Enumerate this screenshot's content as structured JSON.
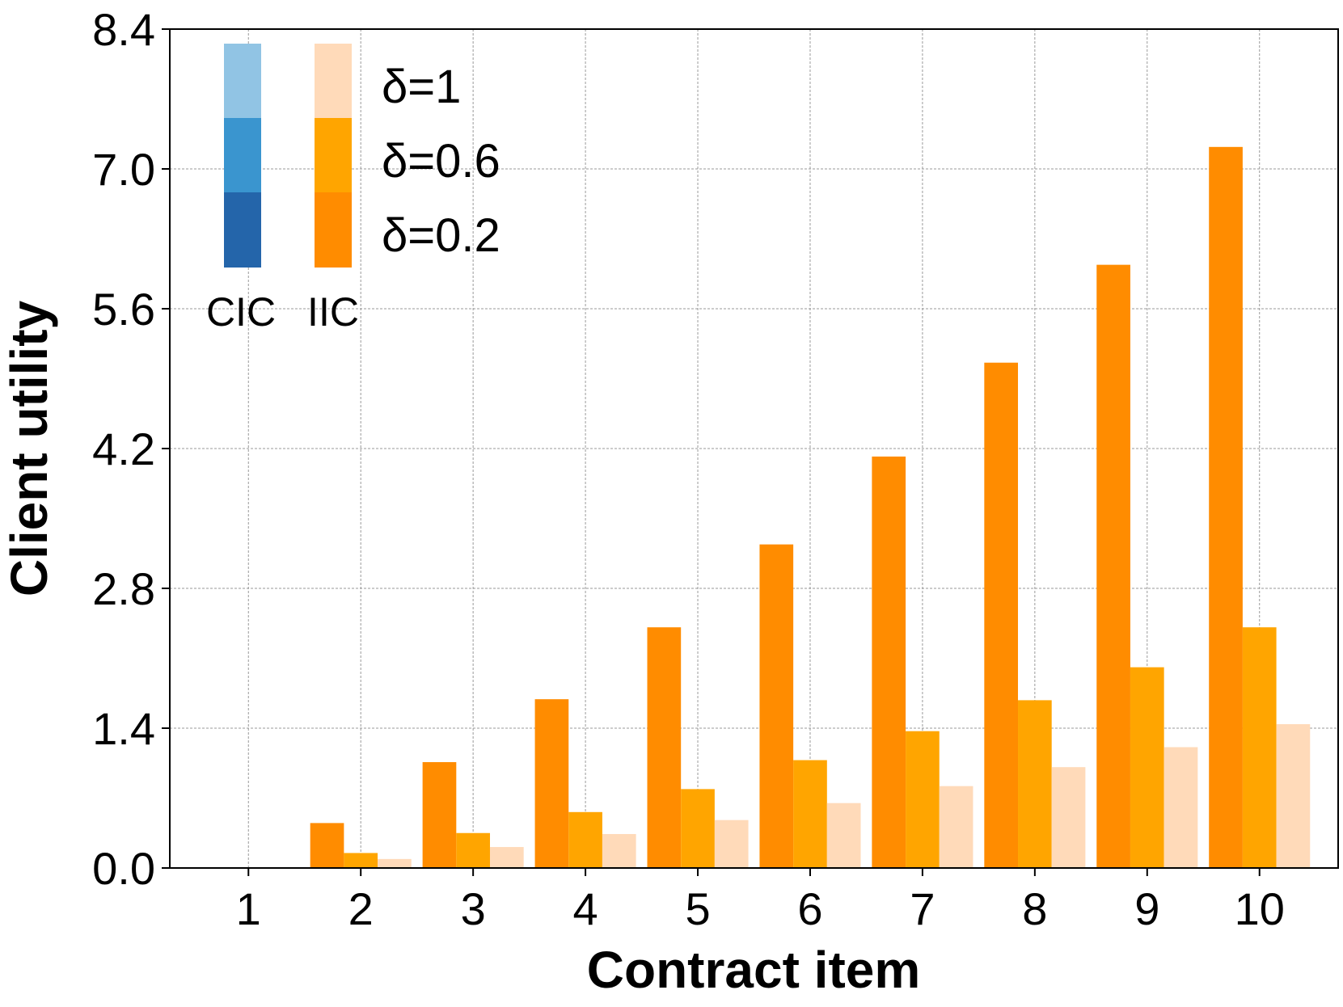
{
  "chart_data": {
    "type": "bar",
    "xlabel": "Contract item",
    "ylabel": "Client utility",
    "categories": [
      "1",
      "2",
      "3",
      "4",
      "5",
      "6",
      "7",
      "8",
      "9",
      "10"
    ],
    "ylim": [
      0,
      8.4
    ],
    "yticks": [
      "0.0",
      "1.4",
      "2.8",
      "4.2",
      "5.6",
      "7.0",
      "8.4"
    ],
    "grid": true,
    "legend_placement": "top-left",
    "legend": {
      "groups": [
        "CIC",
        "IIC"
      ],
      "entries": [
        "δ=1",
        "δ=0.6",
        "δ=0.2"
      ]
    },
    "series": [
      {
        "name": "δ=0.2",
        "group": "IIC",
        "color": "#ff8c00",
        "values": [
          0.0,
          0.45,
          1.06,
          1.69,
          2.41,
          3.24,
          4.12,
          5.06,
          6.04,
          7.22
        ]
      },
      {
        "name": "δ=0.6",
        "group": "IIC",
        "color": "#ffa500",
        "values": [
          0.0,
          0.15,
          0.35,
          0.56,
          0.79,
          1.08,
          1.37,
          1.68,
          2.01,
          2.41
        ]
      },
      {
        "name": "δ=1",
        "group": "IIC",
        "color": "#ffdab9",
        "values": [
          0.0,
          0.09,
          0.21,
          0.34,
          0.48,
          0.65,
          0.82,
          1.01,
          1.21,
          1.44
        ]
      }
    ],
    "colors": {
      "cic": [
        "#91c4e4",
        "#3a95cf",
        "#2465aa"
      ],
      "iic": [
        "#ffdab9",
        "#ffa500",
        "#ff8c00"
      ]
    }
  }
}
